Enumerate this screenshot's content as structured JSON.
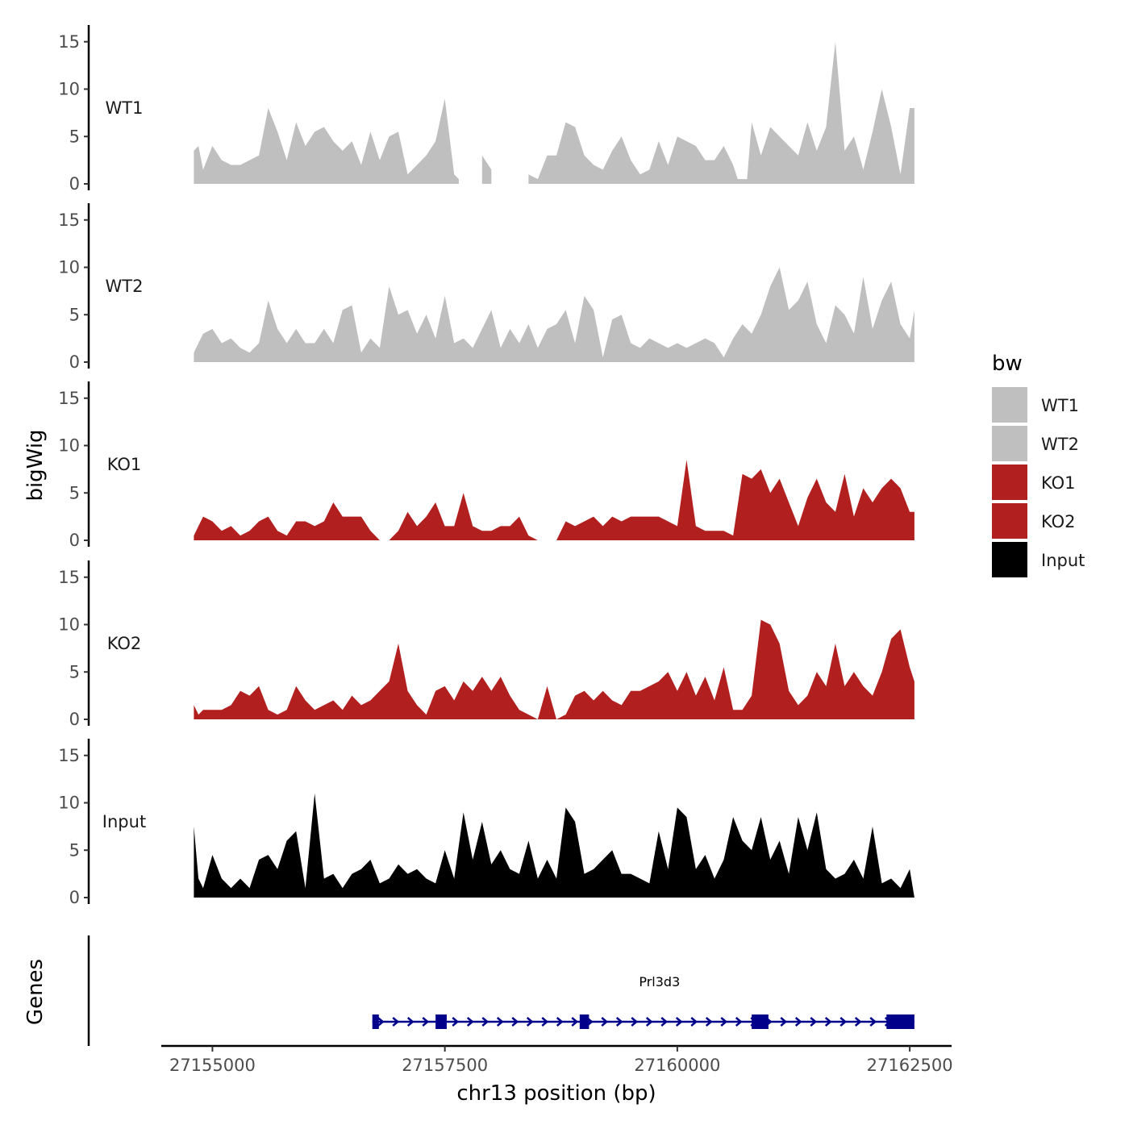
{
  "chart_data": {
    "type": "area",
    "chromosome": "chr13",
    "xlabel": "chr13 position (bp)",
    "ylabel": "bigWig",
    "genes_label": "Genes",
    "xlim": [
      27154450,
      27162950
    ],
    "x_ticks": [
      27155000,
      27157500,
      27160000,
      27162500
    ],
    "x_tick_labels": [
      "27155000",
      "27157500",
      "27160000",
      "27162500"
    ],
    "ylim": [
      0,
      16
    ],
    "y_ticks": [
      0,
      5,
      10,
      15
    ],
    "y_tick_labels": [
      "0",
      "5",
      "10",
      "15"
    ],
    "legend": {
      "title": "bw",
      "entries": [
        {
          "label": "WT1",
          "color": "#bfbfbf"
        },
        {
          "label": "WT2",
          "color": "#bfbfbf"
        },
        {
          "label": "KO1",
          "color": "#b21f1f"
        },
        {
          "label": "KO2",
          "color": "#b21f1f"
        },
        {
          "label": "Input",
          "color": "#000000"
        }
      ]
    },
    "tracks": [
      {
        "name": "WT1",
        "color": "#bfbfbf",
        "x": [
          27154800,
          27154850,
          27154900,
          27155000,
          27155100,
          27155200,
          27155300,
          27155400,
          27155500,
          27155600,
          27155700,
          27155800,
          27155900,
          27156000,
          27156100,
          27156200,
          27156300,
          27156400,
          27156500,
          27156600,
          27156700,
          27156800,
          27156900,
          27157000,
          27157100,
          27157200,
          27157300,
          27157400,
          27157500,
          27157600,
          27157650,
          27157700,
          27157900,
          27158000,
          27158100,
          27158200,
          27158300,
          27158400,
          27158500,
          27158600,
          27158700,
          27158800,
          27158900,
          27159000,
          27159100,
          27159200,
          27159300,
          27159400,
          27159500,
          27159600,
          27159700,
          27159800,
          27159900,
          27160000,
          27160100,
          27160200,
          27160300,
          27160400,
          27160500,
          27160600,
          27160650,
          27160750,
          27160800,
          27160900,
          27161000,
          27161100,
          27161200,
          27161300,
          27161400,
          27161500,
          27161600,
          27161700,
          27161800,
          27161900,
          27162000,
          27162100,
          27162200,
          27162300,
          27162400,
          27162500,
          27162550
        ],
        "y": [
          3.5,
          4.0,
          1.5,
          4.0,
          2.5,
          2.0,
          2.0,
          2.5,
          3.0,
          8.0,
          5.5,
          2.5,
          6.5,
          4.0,
          5.5,
          6.0,
          4.5,
          3.5,
          4.5,
          2.0,
          5.5,
          2.5,
          5.0,
          5.5,
          1.0,
          2.0,
          3.0,
          4.5,
          9.0,
          1.0,
          0.5,
          1.0,
          3.0,
          1.5,
          0,
          0,
          0.5,
          1.0,
          0.5,
          3.0,
          3.0,
          6.5,
          6.0,
          3.0,
          2.0,
          1.5,
          3.5,
          5.0,
          2.5,
          1.0,
          1.5,
          4.5,
          2.0,
          5.0,
          4.5,
          4.0,
          2.5,
          2.5,
          4.0,
          2.0,
          0.5,
          0.5,
          6.5,
          3.0,
          6.0,
          5.0,
          4.0,
          3.0,
          6.5,
          3.5,
          6.0,
          15.0,
          3.5,
          5.0,
          1.5,
          5.5,
          10.0,
          6.0,
          1.0,
          8.0,
          8.0
        ],
        "gaps": [
          [
            27157650,
            27157900
          ],
          [
            27158050,
            27158350
          ],
          [
            27160650,
            27160750
          ]
        ]
      },
      {
        "name": "WT2",
        "color": "#bfbfbf",
        "x": [
          27154800,
          27154850,
          27154900,
          27155000,
          27155100,
          27155200,
          27155300,
          27155400,
          27155500,
          27155600,
          27155700,
          27155800,
          27155900,
          27156000,
          27156100,
          27156200,
          27156300,
          27156400,
          27156500,
          27156600,
          27156700,
          27156800,
          27156900,
          27157000,
          27157100,
          27157200,
          27157300,
          27157400,
          27157500,
          27157600,
          27157700,
          27157800,
          27157900,
          27158000,
          27158100,
          27158200,
          27158300,
          27158400,
          27158500,
          27158600,
          27158700,
          27158800,
          27158900,
          27159000,
          27159100,
          27159200,
          27159300,
          27159400,
          27159500,
          27159600,
          27159700,
          27159800,
          27159900,
          27160000,
          27160100,
          27160200,
          27160300,
          27160400,
          27160500,
          27160600,
          27160700,
          27160800,
          27160900,
          27161000,
          27161100,
          27161200,
          27161300,
          27161400,
          27161500,
          27161600,
          27161700,
          27161800,
          27161900,
          27162000,
          27162100,
          27162200,
          27162300,
          27162400,
          27162500,
          27162550
        ],
        "y": [
          1.0,
          2.0,
          3.0,
          3.5,
          2.0,
          2.5,
          1.5,
          1.0,
          2.0,
          6.5,
          3.5,
          2.0,
          3.5,
          2.0,
          2.0,
          3.5,
          2.0,
          5.5,
          6.0,
          1.0,
          2.5,
          1.5,
          8.0,
          5.0,
          5.5,
          3.0,
          5.0,
          2.5,
          7.0,
          2.0,
          2.5,
          1.5,
          3.5,
          5.5,
          1.5,
          3.5,
          2.0,
          4.0,
          1.5,
          3.5,
          4.0,
          5.5,
          2.0,
          7.0,
          5.5,
          0.5,
          4.5,
          5.0,
          2.0,
          1.5,
          2.5,
          2.0,
          1.5,
          2.0,
          1.5,
          2.0,
          2.5,
          2.0,
          0.5,
          2.5,
          4.0,
          3.0,
          5.0,
          8.0,
          10.0,
          5.5,
          6.5,
          8.5,
          4.0,
          2.0,
          6.0,
          5.0,
          3.0,
          9.0,
          3.5,
          6.5,
          8.5,
          4.0,
          2.5,
          5.5
        ],
        "gaps": [
          [
            27158650,
            27158700
          ]
        ]
      },
      {
        "name": "KO1",
        "color": "#b21f1f",
        "x": [
          27154800,
          27154850,
          27154900,
          27155000,
          27155100,
          27155200,
          27155300,
          27155400,
          27155500,
          27155600,
          27155700,
          27155800,
          27155900,
          27156000,
          27156100,
          27156200,
          27156300,
          27156400,
          27156500,
          27156600,
          27156700,
          27156800,
          27156900,
          27157000,
          27157100,
          27157200,
          27157300,
          27157400,
          27157500,
          27157600,
          27157700,
          27157800,
          27157900,
          27158000,
          27158100,
          27158200,
          27158300,
          27158400,
          27158500,
          27158600,
          27158700,
          27158800,
          27158900,
          27159000,
          27159100,
          27159200,
          27159300,
          27159400,
          27159500,
          27159600,
          27159700,
          27159800,
          27159900,
          27160000,
          27160100,
          27160200,
          27160300,
          27160400,
          27160500,
          27160600,
          27160700,
          27160800,
          27160900,
          27161000,
          27161100,
          27161200,
          27161300,
          27161400,
          27161500,
          27161600,
          27161700,
          27161800,
          27161900,
          27162000,
          27162100,
          27162200,
          27162300,
          27162400,
          27162500,
          27162550
        ],
        "y": [
          0.5,
          1.5,
          2.5,
          2.0,
          1.0,
          1.5,
          0.5,
          1.0,
          2.0,
          2.5,
          1.0,
          0.5,
          2.0,
          2.0,
          1.5,
          2.0,
          4.0,
          2.5,
          2.5,
          2.5,
          1.0,
          0,
          0,
          1.0,
          3.0,
          1.5,
          2.5,
          4.0,
          1.5,
          1.5,
          5.0,
          1.5,
          1.0,
          1.0,
          1.5,
          1.5,
          2.5,
          0.5,
          0,
          0,
          0,
          2.0,
          1.5,
          2.0,
          2.5,
          1.5,
          2.5,
          2.0,
          2.5,
          2.5,
          2.5,
          2.5,
          2.0,
          1.5,
          8.5,
          1.5,
          1.0,
          1.0,
          1.0,
          0.5,
          7.0,
          6.5,
          7.5,
          5.0,
          6.5,
          4.0,
          1.5,
          4.5,
          6.5,
          4.0,
          3.0,
          7.0,
          2.5,
          5.5,
          4.0,
          5.5,
          6.5,
          5.5,
          3.0,
          3.0
        ],
        "gaps": [
          [
            27156700,
            27156800
          ],
          [
            27158300,
            27158400
          ],
          [
            27158500,
            27158700
          ]
        ]
      },
      {
        "name": "KO2",
        "color": "#b21f1f",
        "x": [
          27154800,
          27154850,
          27154900,
          27155000,
          27155100,
          27155200,
          27155300,
          27155400,
          27155500,
          27155600,
          27155700,
          27155800,
          27155900,
          27156000,
          27156100,
          27156200,
          27156300,
          27156400,
          27156500,
          27156600,
          27156700,
          27156800,
          27156900,
          27157000,
          27157100,
          27157200,
          27157300,
          27157400,
          27157500,
          27157600,
          27157700,
          27157800,
          27157900,
          27158000,
          27158100,
          27158200,
          27158300,
          27158400,
          27158500,
          27158600,
          27158700,
          27158800,
          27158900,
          27159000,
          27159100,
          27159200,
          27159300,
          27159400,
          27159500,
          27159600,
          27159700,
          27159800,
          27159900,
          27160000,
          27160100,
          27160200,
          27160300,
          27160400,
          27160500,
          27160600,
          27160700,
          27160800,
          27160900,
          27161000,
          27161100,
          27161200,
          27161300,
          27161400,
          27161500,
          27161600,
          27161700,
          27161800,
          27161900,
          27162000,
          27162100,
          27162200,
          27162300,
          27162400,
          27162500,
          27162550
        ],
        "y": [
          1.5,
          0.5,
          1.0,
          1.0,
          1.0,
          1.5,
          3.0,
          2.5,
          3.5,
          1.0,
          0.5,
          1.0,
          3.5,
          2.0,
          1.0,
          1.5,
          2.0,
          1.0,
          2.5,
          1.5,
          2.0,
          3.0,
          4.0,
          8.0,
          3.0,
          1.5,
          0.5,
          3.0,
          3.5,
          2.0,
          4.0,
          3.0,
          4.5,
          3.0,
          4.5,
          2.5,
          1.0,
          0.5,
          0,
          3.5,
          0,
          0.5,
          2.5,
          3.0,
          2.0,
          3.0,
          2.0,
          1.5,
          3.0,
          3.0,
          3.5,
          4.0,
          5.0,
          3.0,
          5.0,
          2.5,
          4.5,
          2.0,
          5.5,
          1.0,
          1.0,
          2.5,
          10.5,
          10.0,
          8.0,
          3.0,
          1.5,
          2.5,
          5.0,
          3.5,
          8.0,
          3.5,
          5.0,
          3.5,
          2.5,
          5.0,
          8.5,
          9.5,
          5.5,
          4.0
        ],
        "gaps": []
      },
      {
        "name": "Input",
        "color": "#000000",
        "x": [
          27154800,
          27154850,
          27154900,
          27155000,
          27155100,
          27155200,
          27155300,
          27155400,
          27155500,
          27155600,
          27155700,
          27155800,
          27155900,
          27156000,
          27156100,
          27156200,
          27156300,
          27156400,
          27156500,
          27156600,
          27156700,
          27156800,
          27156900,
          27157000,
          27157100,
          27157200,
          27157300,
          27157400,
          27157500,
          27157600,
          27157700,
          27157800,
          27157900,
          27158000,
          27158100,
          27158200,
          27158300,
          27158400,
          27158500,
          27158600,
          27158700,
          27158800,
          27158900,
          27159000,
          27159100,
          27159200,
          27159300,
          27159400,
          27159500,
          27159600,
          27159700,
          27159800,
          27159900,
          27160000,
          27160100,
          27160200,
          27160300,
          27160400,
          27160500,
          27160600,
          27160700,
          27160800,
          27160900,
          27161000,
          27161100,
          27161200,
          27161300,
          27161400,
          27161500,
          27161600,
          27161700,
          27161800,
          27161900,
          27162000,
          27162100,
          27162200,
          27162300,
          27162400,
          27162500,
          27162550
        ],
        "y": [
          7.5,
          2.0,
          1.0,
          4.5,
          2.0,
          1.0,
          2.0,
          1.0,
          4.0,
          4.5,
          3.0,
          6.0,
          7.0,
          1.0,
          11.0,
          2.0,
          2.5,
          1.0,
          2.5,
          3.0,
          4.0,
          1.5,
          2.0,
          3.5,
          2.5,
          3.0,
          2.0,
          1.5,
          5.0,
          2.0,
          9.0,
          4.0,
          8.0,
          3.5,
          5.0,
          3.0,
          2.5,
          6.0,
          2.0,
          4.0,
          2.0,
          9.5,
          8.0,
          2.5,
          3.0,
          4.0,
          5.0,
          2.5,
          2.5,
          2.0,
          1.5,
          7.0,
          3.0,
          9.5,
          8.5,
          3.0,
          4.5,
          2.0,
          4.0,
          8.5,
          6.0,
          5.0,
          8.5,
          4.0,
          6.0,
          2.5,
          8.5,
          5.0,
          9.0,
          3.0,
          2.0,
          2.5,
          4.0,
          2.0,
          7.5,
          1.5,
          2.0,
          1.0,
          3.0,
          0
        ],
        "gaps": []
      }
    ],
    "gene": {
      "name": "Prl3d3",
      "start": 27156720,
      "end": 27162550,
      "strand": "+",
      "color": "#00008b",
      "exons": [
        [
          27156720,
          27156790
        ],
        [
          27157400,
          27157520
        ],
        [
          27158950,
          27159050
        ],
        [
          27160800,
          27160980
        ],
        [
          27162250,
          27162550
        ]
      ]
    }
  }
}
